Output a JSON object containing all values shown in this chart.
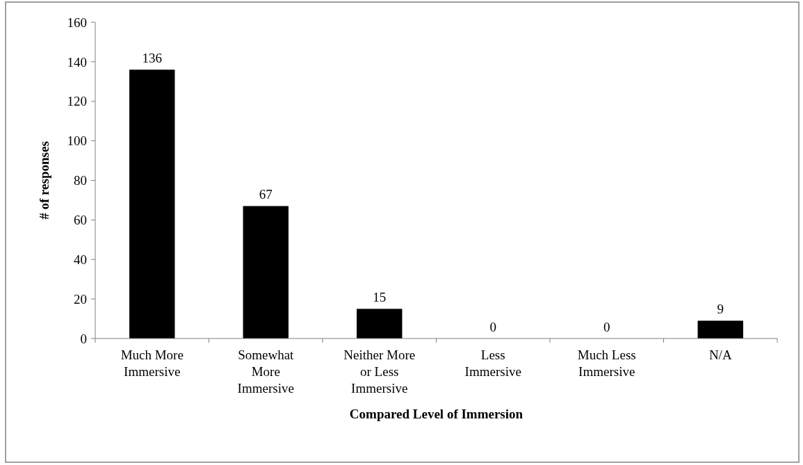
{
  "chart_data": {
    "type": "bar",
    "xlabel": "Compared Level of Immersion",
    "ylabel": "# of responses",
    "categories": [
      "Much More Immersive",
      "Somewhat More Immersive",
      "Neither More or Less Immersive",
      "Less Immersive",
      "Much Less Immersive",
      "N/A"
    ],
    "values": [
      136,
      67,
      15,
      0,
      0,
      9
    ],
    "color": "#000000",
    "ylim": [
      0,
      160
    ],
    "yticks": [
      0,
      20,
      40,
      60,
      80,
      100,
      120,
      140,
      160
    ],
    "data_labels": true,
    "grid": false
  }
}
